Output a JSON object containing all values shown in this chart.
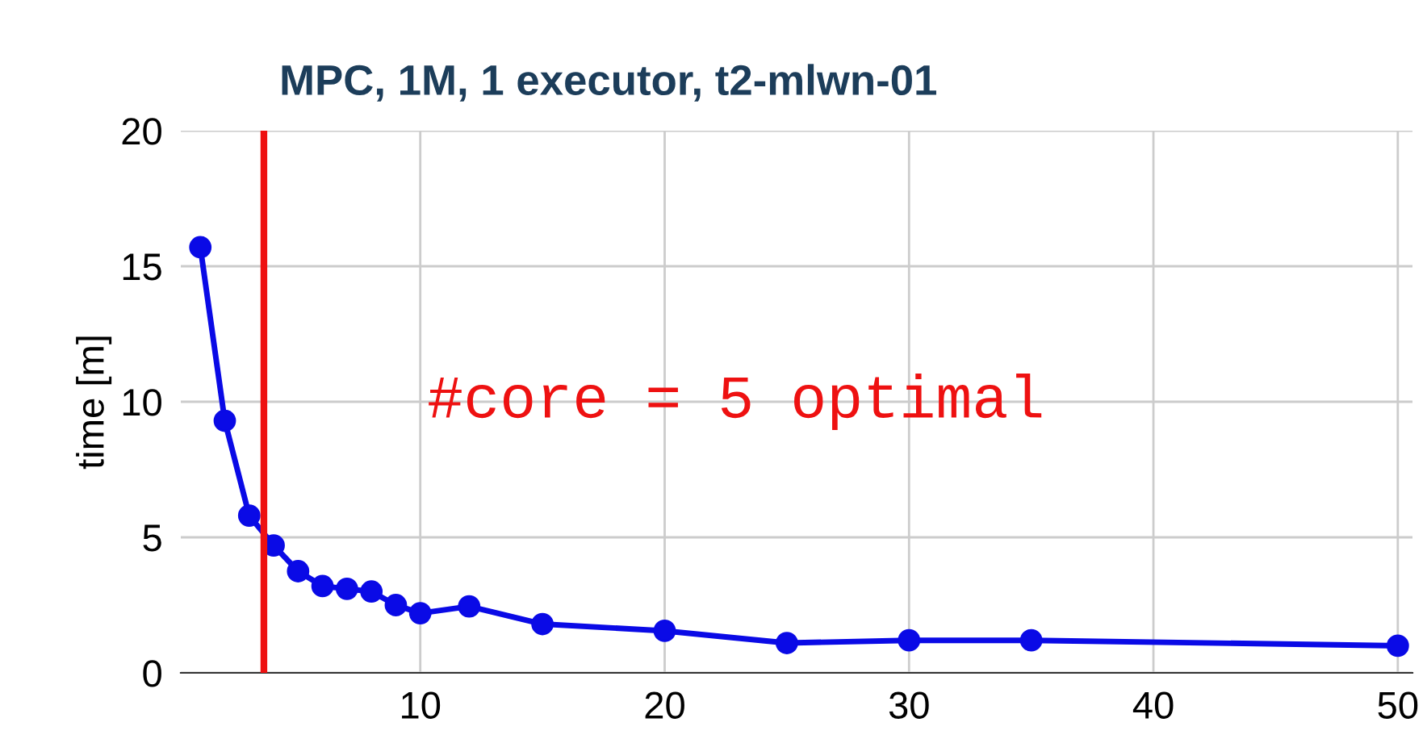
{
  "chart_data": {
    "type": "line",
    "title": "MPC, 1M, 1 executor, t2-mlwn-01",
    "ylabel": "time [m]",
    "x": [
      1,
      2,
      3,
      4,
      5,
      6,
      7,
      8,
      9,
      10,
      12,
      15,
      20,
      25,
      30,
      35,
      50
    ],
    "series": [
      {
        "color": "#0a0ae6",
        "values": [
          15.7,
          9.3,
          5.8,
          4.7,
          3.75,
          3.2,
          3.1,
          3.0,
          2.5,
          2.2,
          2.45,
          1.8,
          1.55,
          1.1,
          1.2,
          1.2,
          1.0
        ]
      }
    ],
    "xlim": [
      0.2,
      50.6
    ],
    "xticks": [
      10,
      20,
      30,
      40,
      50
    ],
    "ylim": [
      0,
      20
    ],
    "yticks": [
      0,
      5,
      10,
      15,
      20
    ],
    "grid": true,
    "marker": "circle",
    "line_style": "solid",
    "annotations": [
      "#core = 5 optimal"
    ],
    "ref_lines": [
      {
        "axis": "x",
        "value": 3.6,
        "color": "#ee1111"
      }
    ]
  }
}
